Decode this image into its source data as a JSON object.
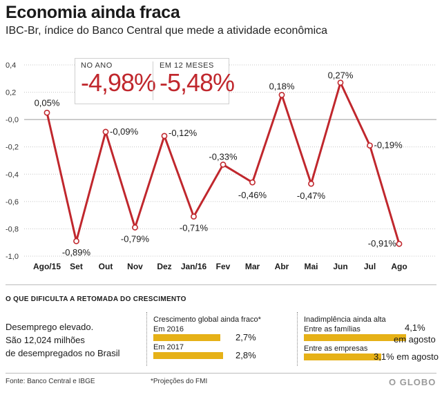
{
  "header": {
    "title": "Economia ainda fraca",
    "subtitle": "IBC-Br, índice do Banco Central que mede a atividade econômica"
  },
  "stats": {
    "year_label": "NO ANO",
    "year_value": "-4,98%",
    "twelve_label": "EM 12 MESES",
    "twelve_value": "-5,48%"
  },
  "chart_data": {
    "type": "line",
    "categories": [
      "Ago/15",
      "Set",
      "Out",
      "Nov",
      "Dez",
      "Jan/16",
      "Fev",
      "Mar",
      "Abr",
      "Mai",
      "Jun",
      "Jul",
      "Ago"
    ],
    "values": [
      0.05,
      -0.89,
      -0.09,
      -0.79,
      -0.12,
      -0.71,
      -0.33,
      -0.46,
      0.18,
      -0.47,
      0.27,
      -0.19,
      -0.91
    ],
    "data_labels": [
      "0,05%",
      "-0,89%",
      "-0,09%",
      "-0,79%",
      "-0,12%",
      "-0,71%",
      "-0,33%",
      "-0,46%",
      "0,18%",
      "-0,47%",
      "0,27%",
      "-0,19%",
      "-0,91%"
    ],
    "ytick_values": [
      0.4,
      0.2,
      0.0,
      -0.2,
      -0.4,
      -0.6,
      -0.8,
      -1.0
    ],
    "ytick_labels": [
      "0,4",
      "0,2",
      "-0,0",
      "-0,2",
      "-0,4",
      "-0,6",
      "-0,8",
      "-1,0"
    ],
    "ylim": [
      -1.0,
      0.4
    ],
    "grid": "horizontal dotted",
    "line_color": "#c0272d",
    "marker_fill": "#ffffff"
  },
  "section": {
    "title": "O QUE DIFICULTA A  RETOMADA DO CRESCIMENTO",
    "unemployment": {
      "line1": "Desemprego elevado.",
      "line2": "São 12,024 milhões",
      "line3": "de desempregados no Brasil"
    },
    "growth": {
      "title": "Crescimento global ainda fraco*",
      "row1_label": "Em 2016",
      "row1_value": "2,7%",
      "row1_pct": 2.7,
      "row2_label": "Em 2017",
      "row2_value": "2,8%",
      "row2_pct": 2.8
    },
    "default": {
      "title": "Inadimplência ainda alta",
      "row1_label": "Entre as famílias",
      "row1_value": "4,1%",
      "row1_suffix": "em agosto",
      "row1_pct": 4.1,
      "row2_label": "Entre as empresas",
      "row2_value": "3,1% em agosto",
      "row2_pct": 3.1
    },
    "bar_color": "#e6b117"
  },
  "footer": {
    "source": "Fonte: Banco Central e IBGE",
    "note": "*Projeções do FMI",
    "logo": "O GLOBO"
  }
}
